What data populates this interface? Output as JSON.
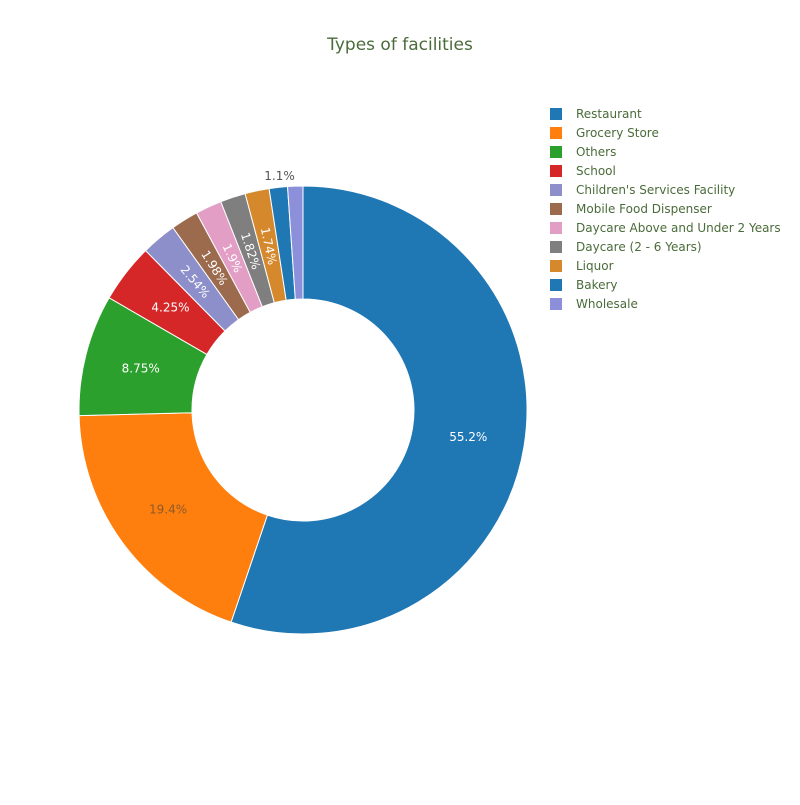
{
  "chart_data": {
    "type": "pie",
    "hole": true,
    "title": "Types of facilities",
    "legend_position": "top-right",
    "text_color": "#4a6b3a",
    "slices": [
      {
        "label": "Restaurant",
        "value": 55.2,
        "text": "55.2%",
        "color": "#1f77b4"
      },
      {
        "label": "Grocery Store",
        "value": 19.4,
        "text": "19.4%",
        "color": "#ff7f0e"
      },
      {
        "label": "Others",
        "value": 8.75,
        "text": "8.75%",
        "color": "#2ca02c"
      },
      {
        "label": "School",
        "value": 4.25,
        "text": "4.25%",
        "color": "#d62728"
      },
      {
        "label": "Children's Services Facility",
        "value": 2.54,
        "text": "2.54%",
        "color": "#8c8fc9"
      },
      {
        "label": "Mobile Food Dispenser",
        "value": 1.98,
        "text": "1.98%",
        "color": "#9c6b4e"
      },
      {
        "label": "Daycare Above and Under 2 Years",
        "value": 1.9,
        "text": "1.9%",
        "color": "#e29ec5"
      },
      {
        "label": "Daycare (2 - 6 Years)",
        "value": 1.82,
        "text": "1.82%",
        "color": "#7f7f7f"
      },
      {
        "label": "Liquor",
        "value": 1.74,
        "text": "1.74%",
        "color": "#d6892c"
      },
      {
        "label": "Bakery",
        "value": 1.32,
        "text": "",
        "color": "#1f77b4"
      },
      {
        "label": "Wholesale",
        "value": 1.1,
        "text": "1.1%",
        "color": "#8c8fd9"
      }
    ]
  }
}
